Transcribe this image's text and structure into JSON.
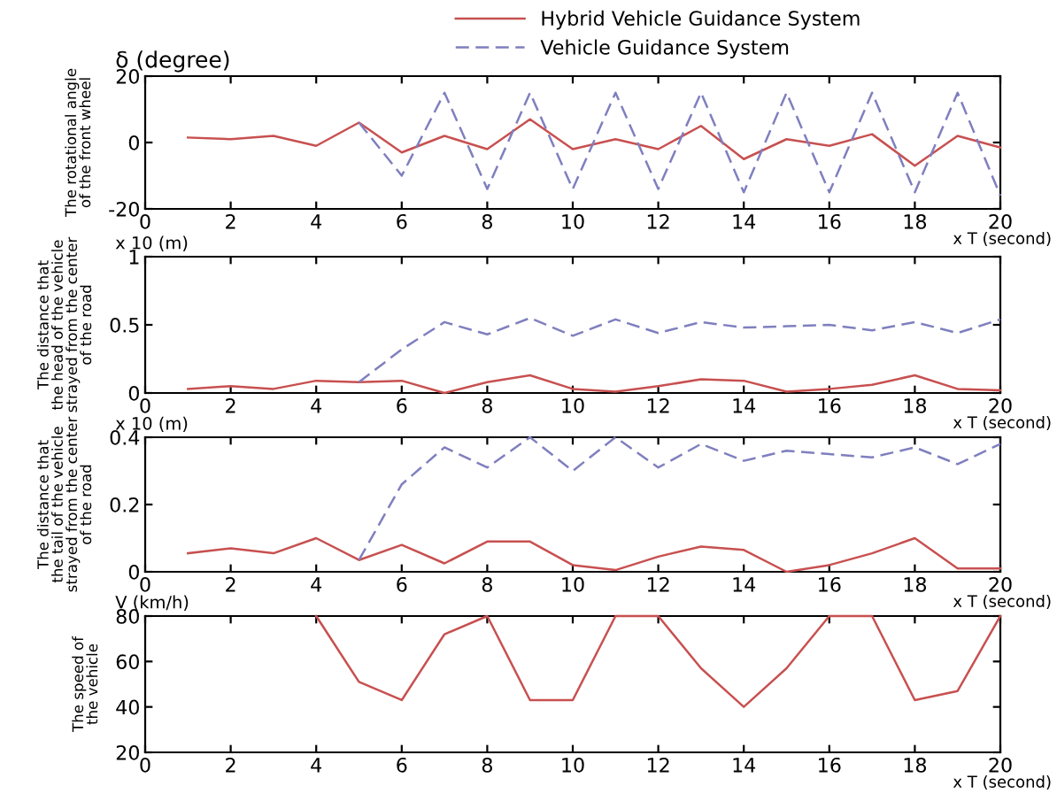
{
  "chart_data": [
    {
      "type": "line",
      "ylabel": "The rotational angle\nof the front wheel",
      "xlabel": "x T (second)",
      "annotations": [
        "δ (degree)"
      ],
      "legend": "top",
      "x": [
        1,
        2,
        3,
        4,
        5,
        6,
        7,
        8,
        9,
        10,
        11,
        12,
        13,
        14,
        15,
        16,
        17,
        18,
        19,
        20
      ],
      "xlim": [
        0,
        20
      ],
      "xticks": [
        0,
        2,
        4,
        6,
        8,
        10,
        12,
        14,
        16,
        18,
        20
      ],
      "ylim": [
        -20,
        20
      ],
      "yticks": [
        -20,
        0,
        20
      ],
      "grid": false,
      "series": [
        {
          "name": "Hybrid Vehicle Guidance System",
          "color": "#c85050",
          "line_style": "solid",
          "values": [
            1.5,
            1,
            2,
            -1,
            6,
            -3,
            2,
            -2,
            7,
            -2,
            1,
            -2,
            5,
            -5,
            1,
            -1,
            2.5,
            -7,
            2,
            -1.5
          ]
        },
        {
          "name": "Vehicle Guidance System",
          "color": "#7f7fbf",
          "line_style": "dashed",
          "values": [
            null,
            null,
            null,
            null,
            6,
            -10,
            15,
            -14,
            15,
            -14,
            15,
            -14,
            15,
            -15,
            15,
            -15,
            15,
            -15,
            15,
            -16
          ]
        }
      ]
    },
    {
      "type": "line",
      "ylabel": "The distance that\nthe head of the vehicle\nstrayed from the center\nof the road",
      "xlabel": "x T (second)",
      "annotations": [
        "x 10 (m)"
      ],
      "x": [
        1,
        2,
        3,
        4,
        5,
        6,
        7,
        8,
        9,
        10,
        11,
        12,
        13,
        14,
        15,
        16,
        17,
        18,
        19,
        20
      ],
      "xlim": [
        0,
        20
      ],
      "xticks": [
        0,
        2,
        4,
        6,
        8,
        10,
        12,
        14,
        16,
        18,
        20
      ],
      "ylim": [
        0,
        1
      ],
      "yticks": [
        0,
        0.5,
        1
      ],
      "grid": false,
      "series": [
        {
          "color": "#c85050",
          "line_style": "solid",
          "values": [
            0.03,
            0.05,
            0.03,
            0.09,
            0.08,
            0.09,
            0.0,
            0.08,
            0.13,
            0.03,
            0.01,
            0.05,
            0.1,
            0.09,
            0.01,
            0.03,
            0.06,
            0.13,
            0.03,
            0.02
          ]
        },
        {
          "color": "#7f7fbf",
          "line_style": "dashed",
          "values": [
            null,
            null,
            null,
            null,
            0.08,
            0.32,
            0.52,
            0.43,
            0.55,
            0.42,
            0.54,
            0.44,
            0.52,
            0.48,
            0.49,
            0.5,
            0.46,
            0.52,
            0.44,
            0.54
          ]
        }
      ]
    },
    {
      "type": "line",
      "ylabel": "The distance that\nthe tail of the vehicle\nstrayed from the center\nof the road",
      "xlabel": "x T (second)",
      "annotations": [
        "x 10 (m)"
      ],
      "x": [
        1,
        2,
        3,
        4,
        5,
        6,
        7,
        8,
        9,
        10,
        11,
        12,
        13,
        14,
        15,
        16,
        17,
        18,
        19,
        20
      ],
      "xlim": [
        0,
        20
      ],
      "xticks": [
        0,
        2,
        4,
        6,
        8,
        10,
        12,
        14,
        16,
        18,
        20
      ],
      "ylim": [
        0,
        0.4
      ],
      "yticks": [
        0,
        0.2,
        0.4
      ],
      "grid": false,
      "series": [
        {
          "color": "#c85050",
          "line_style": "solid",
          "values": [
            0.055,
            0.07,
            0.055,
            0.1,
            0.035,
            0.08,
            0.025,
            0.09,
            0.09,
            0.02,
            0.005,
            0.045,
            0.075,
            0.065,
            0.0,
            0.02,
            0.055,
            0.1,
            0.01,
            0.01
          ]
        },
        {
          "color": "#7f7fbf",
          "line_style": "dashed",
          "values": [
            null,
            null,
            null,
            null,
            0.035,
            0.26,
            0.37,
            0.31,
            0.4,
            0.3,
            0.4,
            0.31,
            0.38,
            0.33,
            0.36,
            0.35,
            0.34,
            0.37,
            0.32,
            0.38
          ]
        }
      ]
    },
    {
      "type": "line",
      "ylabel": "The speed of\nthe vehicle",
      "xlabel": "x T (second)",
      "annotations": [
        "V (km/h)"
      ],
      "x": [
        4,
        5,
        6,
        7,
        8,
        9,
        10,
        11,
        12,
        13,
        14,
        15,
        16,
        17,
        18,
        19,
        20
      ],
      "xlim": [
        0,
        20
      ],
      "xticks": [
        0,
        2,
        4,
        6,
        8,
        10,
        12,
        14,
        16,
        18,
        20
      ],
      "ylim": [
        20,
        80
      ],
      "yticks": [
        20,
        40,
        60,
        80
      ],
      "grid": false,
      "series": [
        {
          "color": "#c85050",
          "line_style": "solid",
          "values": [
            80,
            51,
            43,
            72,
            80,
            43,
            43,
            80,
            80,
            57,
            40,
            57,
            80,
            80,
            43,
            47,
            80
          ]
        }
      ]
    }
  ]
}
